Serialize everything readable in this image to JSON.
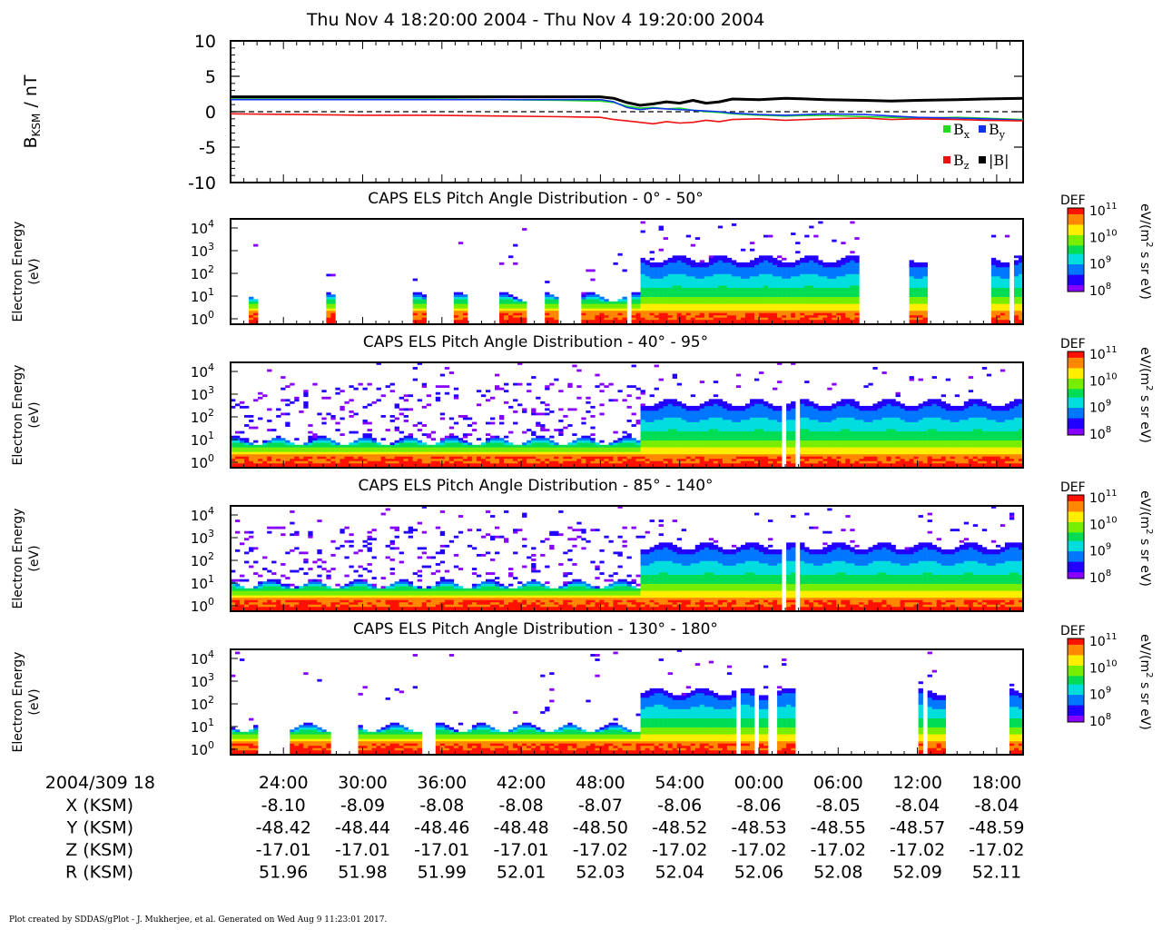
{
  "title": "Thu Nov 4 18:20:00 2004 - Thu Nov 4 19:20:00 2004",
  "footer": "Plot created by SDDAS/gPlot - J. Mukherjee, et al.  Generated on Wed Aug 9 11:23:01 2017.",
  "colors": {
    "bx": "#22dd22",
    "by": "#1133ee",
    "bz": "#ee1111",
    "bmag": "#000000",
    "colorscale": [
      "#8800ff",
      "#2200ff",
      "#0077ff",
      "#00dddd",
      "#00dd55",
      "#77ee00",
      "#ffee00",
      "#ff8800",
      "#ff1100"
    ]
  },
  "mag_panel": {
    "ylabel_main": "B",
    "ylabel_sub": "KSM",
    "ylabel_tail": " / nT",
    "yticks": [
      "10",
      "5",
      "0",
      "-5",
      "-10"
    ],
    "legend": [
      {
        "symbol": "B",
        "sub": "x",
        "color": "#22dd22"
      },
      {
        "symbol": "B",
        "sub": "y",
        "color": "#1133ee"
      },
      {
        "symbol": "B",
        "sub": "z",
        "color": "#ee1111"
      },
      {
        "symbol": "|B|",
        "sub": "",
        "color": "#000000"
      }
    ]
  },
  "chart_data": {
    "type": "line",
    "x_unit": "minutes after 18:20:00",
    "x": [
      0,
      5,
      10,
      15,
      20,
      25,
      28,
      29,
      30,
      31,
      32,
      33,
      34,
      35,
      36,
      37,
      38,
      40,
      42,
      45,
      48,
      50,
      52,
      55,
      57,
      60
    ],
    "ylim": [
      -10,
      10
    ],
    "series": [
      {
        "name": "Bx",
        "values": [
          1.8,
          1.8,
          1.8,
          1.8,
          1.7,
          1.6,
          1.5,
          1.3,
          0.8,
          0.5,
          0.6,
          0.4,
          0.5,
          0.2,
          0.0,
          -0.1,
          -0.3,
          -0.5,
          -0.6,
          -0.5,
          -0.7,
          -0.8,
          -0.9,
          -0.8,
          -0.9,
          -1.1
        ]
      },
      {
        "name": "By",
        "values": [
          1.7,
          1.7,
          1.7,
          1.7,
          1.7,
          1.7,
          1.7,
          1.4,
          0.6,
          0.3,
          0.5,
          0.4,
          0.3,
          0.2,
          0.1,
          0.0,
          -0.2,
          -0.4,
          -0.5,
          -0.3,
          -0.4,
          -0.6,
          -0.8,
          -0.9,
          -1.0,
          -1.2
        ]
      },
      {
        "name": "Bz",
        "values": [
          -0.3,
          -0.4,
          -0.5,
          -0.5,
          -0.6,
          -0.7,
          -0.8,
          -1.1,
          -1.3,
          -1.5,
          -1.7,
          -1.4,
          -1.6,
          -1.5,
          -1.2,
          -1.4,
          -1.1,
          -1.0,
          -1.2,
          -1.0,
          -0.9,
          -1.1,
          -1.0,
          -1.1,
          -1.2,
          -1.3
        ]
      },
      {
        "name": "|B|",
        "values": [
          2.1,
          2.1,
          2.1,
          2.1,
          2.1,
          2.1,
          2.1,
          1.9,
          1.3,
          0.9,
          1.1,
          1.4,
          1.2,
          1.6,
          1.2,
          1.4,
          1.8,
          1.7,
          1.9,
          1.7,
          1.6,
          1.5,
          1.6,
          1.7,
          1.8,
          1.9
        ]
      }
    ],
    "reference_line": 0
  },
  "els_panels": [
    {
      "title": "CAPS ELS Pitch Angle Distribution - 0° - 50°",
      "mode": "sparse"
    },
    {
      "title": "CAPS ELS Pitch Angle Distribution - 40° - 95°",
      "mode": "full"
    },
    {
      "title": "CAPS ELS Pitch Angle Distribution - 85° - 140°",
      "mode": "full"
    },
    {
      "title": "CAPS ELS Pitch Angle Distribution - 130° - 180°",
      "mode": "late_gaps"
    }
  ],
  "els_axis": {
    "ylabel_line1": "Electron Energy",
    "ylabel_line2": "(eV)",
    "yticks": [
      {
        "base": "10",
        "exp": "4"
      },
      {
        "base": "10",
        "exp": "3"
      },
      {
        "base": "10",
        "exp": "2"
      },
      {
        "base": "10",
        "exp": "1"
      },
      {
        "base": "10",
        "exp": "0"
      }
    ]
  },
  "colorbar": {
    "label": "DEF",
    "units_a": "eV/(m",
    "units_exp": "2",
    "units_b": " s sr eV)",
    "ticks": [
      {
        "base": "10",
        "exp": "11"
      },
      {
        "base": "10",
        "exp": "10"
      },
      {
        "base": "10",
        "exp": "9"
      },
      {
        "base": "10",
        "exp": "8"
      }
    ]
  },
  "time_axis": {
    "date_label": "2004/309 18",
    "rows": [
      {
        "label": "X (KSM)",
        "values": [
          "-8.10",
          "-8.09",
          "-8.08",
          "-8.08",
          "-8.07",
          "-8.06",
          "-8.06",
          "-8.05",
          "-8.04",
          "-8.04"
        ]
      },
      {
        "label": "Y (KSM)",
        "values": [
          "-48.42",
          "-48.44",
          "-48.46",
          "-48.48",
          "-48.50",
          "-48.52",
          "-48.53",
          "-48.55",
          "-48.57",
          "-48.59"
        ]
      },
      {
        "label": "Z (KSM)",
        "values": [
          "-17.01",
          "-17.01",
          "-17.01",
          "-17.01",
          "-17.02",
          "-17.02",
          "-17.02",
          "-17.02",
          "-17.02",
          "-17.02"
        ]
      },
      {
        "label": "R (KSM)",
        "values": [
          "51.96",
          "51.98",
          "51.99",
          "52.01",
          "52.03",
          "52.04",
          "52.06",
          "52.08",
          "52.09",
          "52.11"
        ]
      }
    ],
    "ticks": [
      "24:00",
      "30:00",
      "36:00",
      "42:00",
      "48:00",
      "54:00",
      "00:00",
      "06:00",
      "12:00",
      "18:00"
    ],
    "tick_minutes": [
      4,
      10,
      16,
      22,
      28,
      34,
      40,
      46,
      52,
      58
    ]
  }
}
